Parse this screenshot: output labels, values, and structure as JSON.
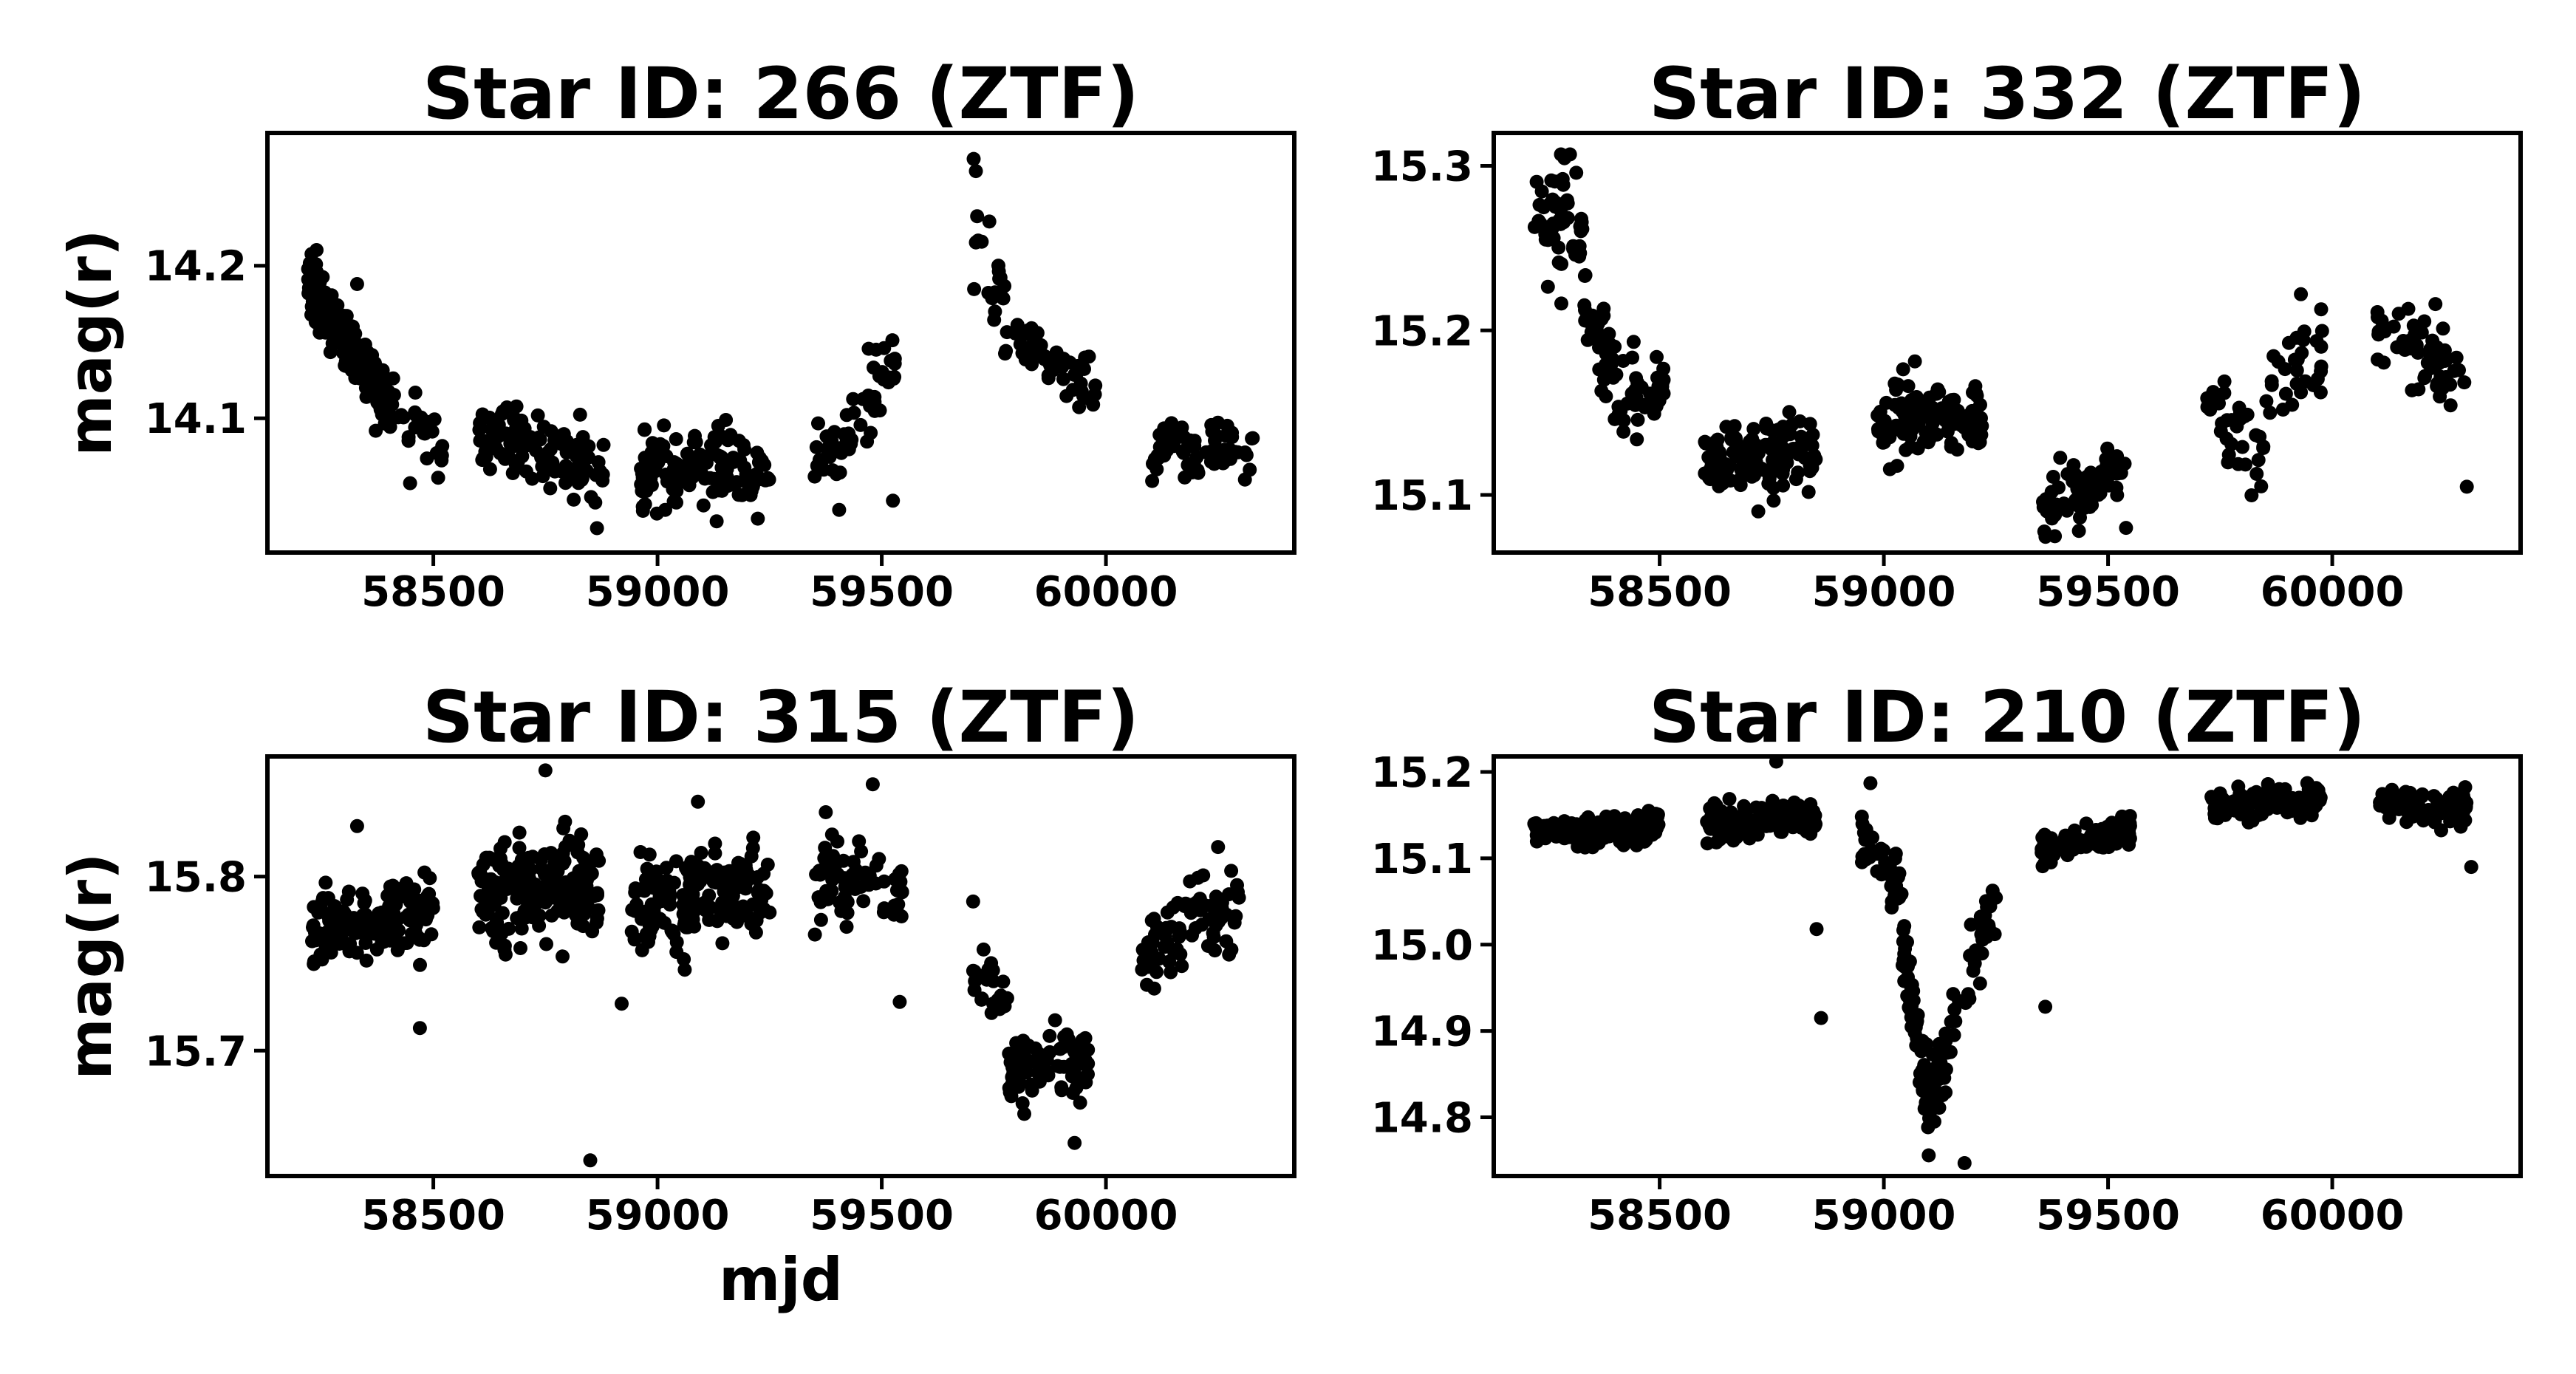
{
  "figure": {
    "xlabel": "mjd",
    "colors": {
      "points": "#000000",
      "background": "#ffffff",
      "axes": "#000000"
    }
  },
  "chart_data": [
    {
      "type": "scatter",
      "title": "Star ID: 266 (ZTF)",
      "ylabel": "mag(r)",
      "xlabel": "",
      "xlim": [
        58130,
        60420
      ],
      "ylim": [
        14.287,
        14.012
      ],
      "y_inverted": true,
      "grid": false,
      "xticks": [
        58500,
        59000,
        59500,
        60000
      ],
      "yticks": [
        14.1,
        14.2
      ],
      "ytick_labels": [
        "14.1",
        "14.2"
      ],
      "segments": [
        {
          "x": [
            58220,
            58400
          ],
          "y": [
            14.19,
            14.11
          ],
          "spread": 0.011,
          "n": 200
        },
        {
          "x": [
            58400,
            58520
          ],
          "y": [
            14.11,
            14.08
          ],
          "spread": 0.015,
          "n": 30
        },
        {
          "x": [
            58600,
            58800
          ],
          "y": [
            14.09,
            14.075
          ],
          "spread": 0.013,
          "n": 90
        },
        {
          "x": [
            58800,
            58880
          ],
          "y": [
            14.07,
            14.06
          ],
          "spread": 0.015,
          "n": 30
        },
        {
          "x": [
            58960,
            59250
          ],
          "y": [
            14.065,
            14.07
          ],
          "spread": 0.016,
          "n": 130
        },
        {
          "x": [
            59350,
            59450
          ],
          "y": [
            14.07,
            14.09
          ],
          "spread": 0.013,
          "n": 35
        },
        {
          "x": [
            59450,
            59550
          ],
          "y": [
            14.09,
            14.14
          ],
          "spread": 0.022,
          "n": 25
        },
        {
          "x": [
            59700,
            59780
          ],
          "y": [
            14.22,
            14.17
          ],
          "spread": 0.02,
          "n": 20
        },
        {
          "x": [
            59780,
            59980
          ],
          "y": [
            14.16,
            14.11
          ],
          "spread": 0.012,
          "n": 45
        },
        {
          "x": [
            60100,
            60330
          ],
          "y": [
            14.08,
            14.08
          ],
          "spread": 0.012,
          "n": 80
        }
      ],
      "outliers": [
        {
          "x": 59705,
          "y": 14.27
        },
        {
          "x": 59710,
          "y": 14.262
        },
        {
          "x": 58865,
          "y": 14.028
        },
        {
          "x": 59525,
          "y": 14.046
        },
        {
          "x": 59405,
          "y": 14.04
        },
        {
          "x": 58330,
          "y": 14.188
        }
      ]
    },
    {
      "type": "scatter",
      "title": "Star ID: 332 (ZTF)",
      "ylabel": "",
      "xlabel": "",
      "xlim": [
        58130,
        60420
      ],
      "ylim": [
        15.32,
        15.065
      ],
      "y_inverted": true,
      "grid": false,
      "xticks": [
        58500,
        59000,
        59500,
        60000
      ],
      "yticks": [
        15.1,
        15.2,
        15.3
      ],
      "ytick_labels": [
        "15.1",
        "15.2",
        "15.3"
      ],
      "segments": [
        {
          "x": [
            58220,
            58330
          ],
          "y": [
            15.27,
            15.26
          ],
          "spread": 0.02,
          "n": 50
        },
        {
          "x": [
            58330,
            58420
          ],
          "y": [
            15.23,
            15.15
          ],
          "spread": 0.018,
          "n": 45
        },
        {
          "x": [
            58420,
            58510
          ],
          "y": [
            15.17,
            15.16
          ],
          "spread": 0.015,
          "n": 30
        },
        {
          "x": [
            58600,
            58850
          ],
          "y": [
            15.12,
            15.125
          ],
          "spread": 0.015,
          "n": 120
        },
        {
          "x": [
            58980,
            59230
          ],
          "y": [
            15.145,
            15.15
          ],
          "spread": 0.016,
          "n": 120
        },
        {
          "x": [
            59350,
            59540
          ],
          "y": [
            15.09,
            15.12
          ],
          "spread": 0.013,
          "n": 60
        },
        {
          "x": [
            59720,
            59850
          ],
          "y": [
            15.15,
            15.12
          ],
          "spread": 0.018,
          "n": 35
        },
        {
          "x": [
            59850,
            59980
          ],
          "y": [
            15.16,
            15.19
          ],
          "spread": 0.018,
          "n": 30
        },
        {
          "x": [
            60100,
            60300
          ],
          "y": [
            15.21,
            15.16
          ],
          "spread": 0.018,
          "n": 55
        }
      ],
      "outliers": [
        {
          "x": 58280,
          "y": 15.307
        },
        {
          "x": 58300,
          "y": 15.307
        },
        {
          "x": 59540,
          "y": 15.08
        },
        {
          "x": 60300,
          "y": 15.105
        },
        {
          "x": 59930,
          "y": 15.222
        },
        {
          "x": 58720,
          "y": 15.09
        }
      ]
    },
    {
      "type": "scatter",
      "title": "Star ID: 315 (ZTF)",
      "ylabel": "mag(r)",
      "xlabel": "mjd",
      "xlim": [
        58130,
        60420
      ],
      "ylim": [
        15.869,
        15.628
      ],
      "y_inverted": true,
      "grid": false,
      "xticks": [
        58500,
        59000,
        59500,
        60000
      ],
      "yticks": [
        15.7,
        15.8
      ],
      "ytick_labels": [
        "15.7",
        "15.8"
      ],
      "segments": [
        {
          "x": [
            58220,
            58500
          ],
          "y": [
            15.77,
            15.78
          ],
          "spread": 0.013,
          "n": 170
        },
        {
          "x": [
            58600,
            58870
          ],
          "y": [
            15.79,
            15.795
          ],
          "spread": 0.018,
          "n": 200
        },
        {
          "x": [
            58940,
            59250
          ],
          "y": [
            15.785,
            15.795
          ],
          "spread": 0.016,
          "n": 180
        },
        {
          "x": [
            59350,
            59550
          ],
          "y": [
            15.8,
            15.79
          ],
          "spread": 0.016,
          "n": 70
        },
        {
          "x": [
            59700,
            59780
          ],
          "y": [
            15.75,
            15.72
          ],
          "spread": 0.02,
          "n": 25
        },
        {
          "x": [
            59780,
            59960
          ],
          "y": [
            15.69,
            15.695
          ],
          "spread": 0.012,
          "n": 80
        },
        {
          "x": [
            60080,
            60300
          ],
          "y": [
            15.76,
            15.785
          ],
          "spread": 0.015,
          "n": 80
        }
      ],
      "outliers": [
        {
          "x": 58850,
          "y": 15.637
        },
        {
          "x": 59930,
          "y": 15.647
        },
        {
          "x": 58470,
          "y": 15.713
        },
        {
          "x": 59540,
          "y": 15.728
        },
        {
          "x": 59480,
          "y": 15.853
        },
        {
          "x": 58750,
          "y": 15.861
        },
        {
          "x": 59090,
          "y": 15.843
        },
        {
          "x": 58920,
          "y": 15.727
        },
        {
          "x": 58330,
          "y": 15.829
        },
        {
          "x": 60250,
          "y": 15.817
        }
      ]
    },
    {
      "type": "scatter",
      "title": "Star ID: 210 (ZTF)",
      "ylabel": "",
      "xlabel": "",
      "xlim": [
        58130,
        60420
      ],
      "ylim": [
        15.218,
        14.732
      ],
      "y_inverted": true,
      "grid": false,
      "xticks": [
        58500,
        59000,
        59500,
        60000
      ],
      "yticks": [
        14.8,
        14.9,
        15.0,
        15.1,
        15.2
      ],
      "ytick_labels": [
        "14.8",
        "14.9",
        "15.0",
        "15.1",
        "15.2"
      ],
      "segments": [
        {
          "x": [
            58220,
            58500
          ],
          "y": [
            15.125,
            15.135
          ],
          "spread": 0.011,
          "n": 140
        },
        {
          "x": [
            58600,
            58850
          ],
          "y": [
            15.14,
            15.145
          ],
          "spread": 0.013,
          "n": 130
        },
        {
          "x": [
            58950,
            59040
          ],
          "y": [
            15.13,
            15.06
          ],
          "spread": 0.018,
          "n": 40
        },
        {
          "x": [
            59040,
            59100
          ],
          "y": [
            15.0,
            14.82
          ],
          "spread": 0.03,
          "n": 55
        },
        {
          "x": [
            59100,
            59150
          ],
          "y": [
            14.82,
            14.88
          ],
          "spread": 0.025,
          "n": 35
        },
        {
          "x": [
            59150,
            59250
          ],
          "y": [
            14.9,
            15.06
          ],
          "spread": 0.02,
          "n": 40
        },
        {
          "x": [
            59350,
            59550
          ],
          "y": [
            15.11,
            15.135
          ],
          "spread": 0.01,
          "n": 90
        },
        {
          "x": [
            59730,
            59980
          ],
          "y": [
            15.16,
            15.17
          ],
          "spread": 0.011,
          "n": 120
        },
        {
          "x": [
            60100,
            60300
          ],
          "y": [
            15.165,
            15.155
          ],
          "spread": 0.011,
          "n": 90
        }
      ],
      "outliers": [
        {
          "x": 59180,
          "y": 14.747
        },
        {
          "x": 59100,
          "y": 14.756
        },
        {
          "x": 58860,
          "y": 14.915
        },
        {
          "x": 59360,
          "y": 14.928
        },
        {
          "x": 58850,
          "y": 15.018
        },
        {
          "x": 60310,
          "y": 15.09
        },
        {
          "x": 58760,
          "y": 15.212
        },
        {
          "x": 58970,
          "y": 15.187
        }
      ]
    }
  ]
}
